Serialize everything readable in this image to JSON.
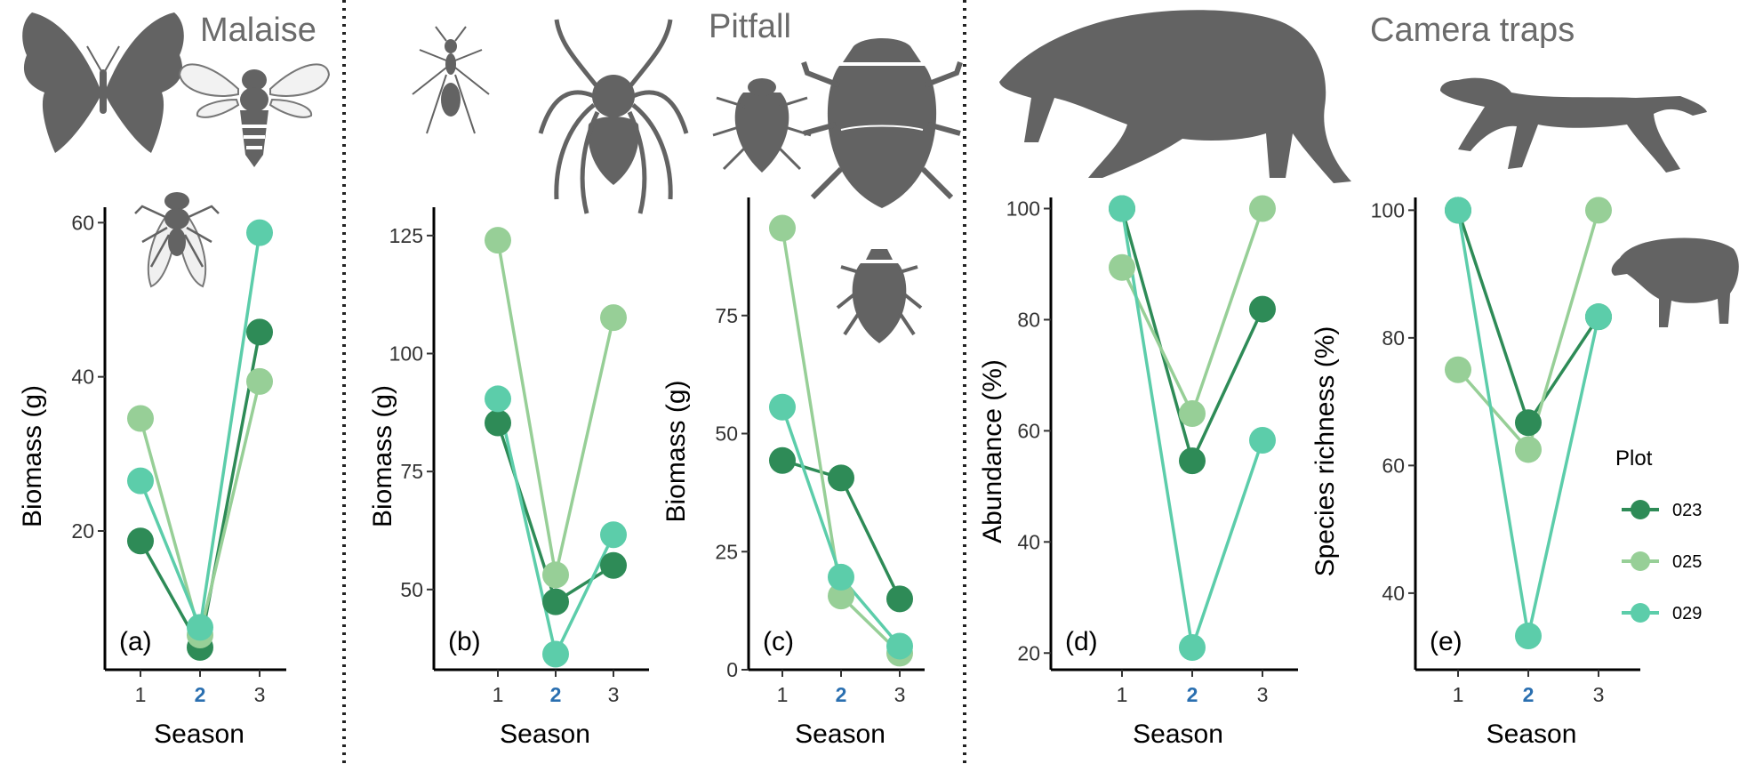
{
  "sections": [
    {
      "key": "malaise",
      "label": "Malaise"
    },
    {
      "key": "pitfall",
      "label": "Pitfall"
    },
    {
      "key": "camera",
      "label": "Camera traps"
    }
  ],
  "legend": {
    "title": "Plot",
    "entries": [
      {
        "label": "023",
        "color": "#2e8b57"
      },
      {
        "label": "025",
        "color": "#97cf97"
      },
      {
        "label": "029",
        "color": "#5ccdaa"
      }
    ]
  },
  "icons": [
    "butterfly-icon",
    "bee-icon",
    "fly-icon",
    "ant-icon",
    "spider-icon",
    "small-beetle-icon",
    "dung-beetle-icon",
    "beetle-icon",
    "tapir-icon",
    "puma-icon",
    "boar-icon"
  ],
  "chart_data": [
    {
      "id": "a",
      "type": "line",
      "panel_label": "(a)",
      "xlabel": "Season",
      "ylabel": "Biomass (g)",
      "x": [
        1,
        2,
        3
      ],
      "x_highlight": 2,
      "yticks": [
        20,
        40,
        60
      ],
      "ylim": [
        2,
        62
      ],
      "series": [
        {
          "name": "023",
          "values": [
            18.7,
            4.9,
            45.8
          ]
        },
        {
          "name": "025",
          "values": [
            34.6,
            6.5,
            39.4
          ]
        },
        {
          "name": "029",
          "values": [
            26.5,
            7.5,
            58.7
          ]
        }
      ]
    },
    {
      "id": "b",
      "type": "line",
      "panel_label": "(b)",
      "xlabel": "Season",
      "ylabel": "Biomass (g)",
      "x": [
        1,
        2,
        3
      ],
      "x_highlight": 2,
      "yticks": [
        50,
        75,
        100,
        125
      ],
      "ylim": [
        33,
        131
      ],
      "series": [
        {
          "name": "023",
          "values": [
            85.3,
            47.4,
            55.1
          ]
        },
        {
          "name": "025",
          "values": [
            124.0,
            53.1,
            107.6
          ]
        },
        {
          "name": "029",
          "values": [
            90.4,
            36.3,
            61.6
          ]
        }
      ]
    },
    {
      "id": "c",
      "type": "line",
      "panel_label": "(c)",
      "xlabel": "Season",
      "ylabel": "Biomass (g)",
      "x": [
        1,
        2,
        3
      ],
      "x_highlight": 2,
      "yticks": [
        0,
        25,
        50,
        75
      ],
      "ylim": [
        0,
        100
      ],
      "series": [
        {
          "name": "023",
          "values": [
            44.3,
            40.6,
            15.0
          ]
        },
        {
          "name": "025",
          "values": [
            93.5,
            15.6,
            3.5
          ]
        },
        {
          "name": "029",
          "values": [
            55.6,
            19.6,
            5.0
          ]
        }
      ]
    },
    {
      "id": "d",
      "type": "line",
      "panel_label": "(d)",
      "xlabel": "Season",
      "ylabel": "Abundance (%)",
      "x": [
        1,
        2,
        3
      ],
      "x_highlight": 2,
      "yticks": [
        20,
        40,
        60,
        80,
        100
      ],
      "ylim": [
        17,
        102
      ],
      "series": [
        {
          "name": "023",
          "values": [
            100,
            54.6,
            81.9
          ]
        },
        {
          "name": "025",
          "values": [
            89.4,
            63.1,
            100
          ]
        },
        {
          "name": "029",
          "values": [
            100,
            21.0,
            58.3
          ]
        }
      ]
    },
    {
      "id": "e",
      "type": "line",
      "panel_label": "(e)",
      "xlabel": "Season",
      "ylabel": "Species richness (%)",
      "x": [
        1,
        2,
        3
      ],
      "x_highlight": 2,
      "yticks": [
        40,
        60,
        80,
        100
      ],
      "ylim": [
        28,
        102
      ],
      "series": [
        {
          "name": "023",
          "values": [
            100,
            66.7,
            83.3
          ]
        },
        {
          "name": "025",
          "values": [
            75.0,
            62.5,
            100
          ]
        },
        {
          "name": "029",
          "values": [
            100,
            33.3,
            83.3
          ]
        }
      ]
    }
  ]
}
